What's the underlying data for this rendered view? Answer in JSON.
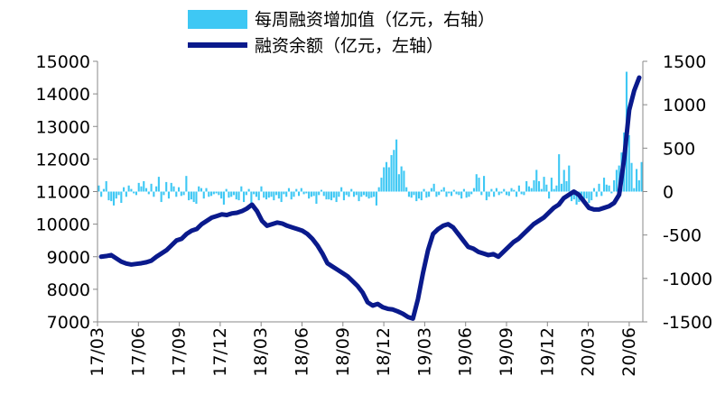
{
  "chart_data": {
    "type": "bar+line",
    "legend": [
      {
        "label": "每周融资增加值（亿元，右轴）",
        "kind": "bar",
        "color": "#3ec8f4"
      },
      {
        "label": "融资余额（亿元，左轴）",
        "kind": "line",
        "color": "#0a1a8c"
      }
    ],
    "left_axis": {
      "min": 7000,
      "max": 15000,
      "ticks": [
        "7000",
        "8000",
        "9000",
        "10000",
        "11000",
        "12000",
        "13000",
        "14000",
        "15000"
      ]
    },
    "right_axis": {
      "min": -1500,
      "max": 1500,
      "ticks": [
        "-1500",
        "-1000",
        "-500",
        "0",
        "500",
        "1000",
        "1500"
      ]
    },
    "x_axis": {
      "start": "17/03",
      "end": "20/07",
      "tick_labels": [
        "17/03",
        "17/06",
        "17/09",
        "17/12",
        "18/03",
        "18/06",
        "18/09",
        "18/12",
        "19/03",
        "19/06",
        "19/09",
        "19/12",
        "20/03",
        "20/06"
      ]
    },
    "series": [
      {
        "name": "融资余额（亿元，左轴）",
        "axis": "left",
        "values": [
          9000,
          9020,
          9050,
          8950,
          8850,
          8790,
          8760,
          8780,
          8800,
          8830,
          8880,
          9000,
          9100,
          9200,
          9350,
          9500,
          9550,
          9700,
          9800,
          9850,
          10000,
          10100,
          10200,
          10250,
          10300,
          10280,
          10330,
          10350,
          10400,
          10480,
          10600,
          10400,
          10100,
          9950,
          10000,
          10050,
          10020,
          9950,
          9900,
          9850,
          9800,
          9700,
          9550,
          9350,
          9100,
          8800,
          8700,
          8600,
          8500,
          8400,
          8250,
          8100,
          7900,
          7600,
          7500,
          7550,
          7450,
          7400,
          7380,
          7320,
          7250,
          7150,
          7100,
          7700,
          8500,
          9200,
          9700,
          9850,
          9950,
          10000,
          9900,
          9700,
          9500,
          9300,
          9250,
          9150,
          9100,
          9050,
          9080,
          9000,
          9150,
          9300,
          9450,
          9550,
          9700,
          9850,
          10000,
          10100,
          10200,
          10350,
          10500,
          10600,
          10800,
          10900,
          11000,
          10900,
          10700,
          10500,
          10450,
          10450,
          10500,
          10550,
          10650,
          10900,
          12000,
          13500,
          14100,
          14500
        ]
      },
      {
        "name": "每周融资增加值（亿元，右轴）",
        "axis": "right",
        "values": [
          70,
          -60,
          30,
          120,
          -100,
          -110,
          -160,
          -80,
          -40,
          -130,
          50,
          -60,
          70,
          30,
          -20,
          -40,
          100,
          60,
          120,
          40,
          -30,
          90,
          -60,
          60,
          170,
          -120,
          -40,
          110,
          -80,
          100,
          60,
          -60,
          50,
          -50,
          -40,
          180,
          -100,
          -90,
          -120,
          -140,
          60,
          40,
          -80,
          40,
          -60,
          -50,
          -30,
          -20,
          -40,
          -80,
          -150,
          30,
          -70,
          -60,
          -40,
          -90,
          -100,
          60,
          -120,
          -40,
          30,
          -140,
          -30,
          -60,
          -100,
          60,
          -70,
          -90,
          -70,
          -60,
          -100,
          -40,
          -80,
          -120,
          -30,
          -60,
          40,
          -90,
          -60,
          30,
          -50,
          40,
          -30,
          -20,
          -80,
          -60,
          -50,
          -140,
          -40,
          20,
          -50,
          -90,
          -90,
          -100,
          -70,
          -120,
          -60,
          50,
          -100,
          -40,
          -60,
          30,
          -60,
          -40,
          -110,
          -60,
          -40,
          -60,
          -80,
          -70,
          -60,
          -160,
          50,
          160,
          280,
          340,
          280,
          420,
          480,
          600,
          200,
          290,
          240,
          50,
          -60,
          -70,
          -40,
          -110,
          -80,
          -100,
          30,
          -70,
          -60,
          40,
          90,
          -60,
          -40,
          20,
          50,
          -60,
          -20,
          -50,
          20,
          -30,
          -40,
          -80,
          30,
          -70,
          -60,
          -30,
          40,
          200,
          160,
          -40,
          180,
          -100,
          -60,
          30,
          -60,
          40,
          -40,
          -20,
          30,
          -40,
          -50,
          40,
          20,
          -60,
          70,
          -30,
          -40,
          120,
          60,
          40,
          130,
          250,
          120,
          30,
          170,
          80,
          -80,
          160,
          30,
          70,
          430,
          90,
          250,
          120,
          300,
          -110,
          -90,
          -150,
          -120,
          -40,
          -100,
          -80,
          -130,
          -100,
          40,
          -60,
          90,
          -50,
          160,
          80,
          70,
          -20,
          130,
          250,
          300,
          450,
          680,
          1380,
          650,
          330,
          40,
          260,
          130,
          340
        ]
      }
    ]
  }
}
